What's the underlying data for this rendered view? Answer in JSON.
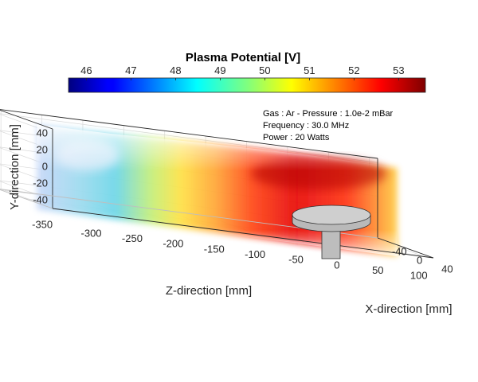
{
  "chart_data": {
    "type": "heatmap",
    "title": "Plasma Potential [V]",
    "colorbar": {
      "ticks": [
        "46",
        "47",
        "48",
        "49",
        "50",
        "51",
        "52",
        "53"
      ],
      "range": [
        45.6,
        53.6
      ],
      "colormap": "jet"
    },
    "annotations": [
      "Gas : Ar - Pressure : 1.0e-2 mBar",
      "Frequency : 30.0 MHz",
      "Power : 20 Watts"
    ],
    "axes": {
      "x": {
        "label": "X-direction [mm]",
        "ticks": [
          "-40",
          "0",
          "40"
        ],
        "range": [
          -45,
          45
        ]
      },
      "y": {
        "label": "Y-direction [mm]",
        "ticks": [
          "-40",
          "-20",
          "0",
          "20",
          "40"
        ],
        "range": [
          -50,
          45
        ]
      },
      "z": {
        "label": "Z-direction [mm]",
        "ticks": [
          "-350",
          "-300",
          "-250",
          "-200",
          "-150",
          "-100",
          "-50",
          "0",
          "50",
          "100"
        ],
        "range": [
          -355,
          110
        ]
      }
    },
    "grid": true,
    "surface_profile": {
      "z": [
        -340,
        -300,
        -250,
        -200,
        -150,
        -100,
        -50,
        0,
        50,
        100
      ],
      "potential": [
        48.2,
        48.4,
        48.6,
        49.8,
        51.0,
        51.8,
        52.5,
        52.8,
        52.3,
        51.6
      ]
    }
  }
}
